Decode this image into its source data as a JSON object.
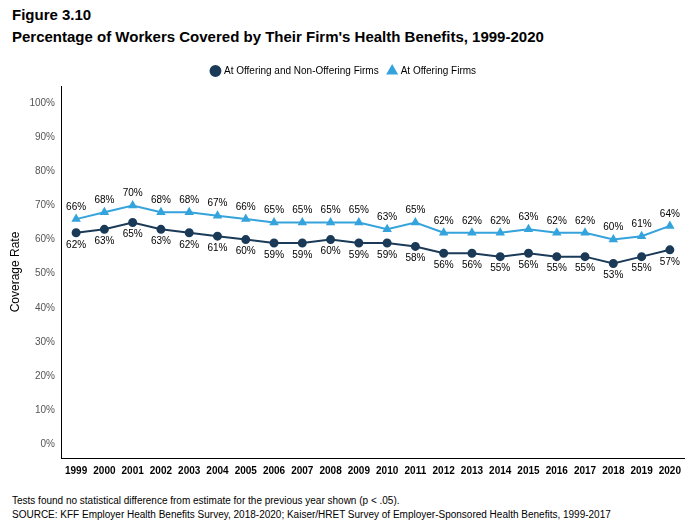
{
  "chart_data": {
    "type": "line",
    "title": "Figure 3.10",
    "subtitle": "Percentage of Workers Covered by Their Firm's Health Benefits, 1999-2020",
    "ylabel": "Coverage Rate",
    "annotations": [
      "Tests found no statistical difference from estimate for the previous year shown (p < .05).",
      "SOURCE: KFF Employer Health Benefits Survey, 2018-2020; Kaiser/HRET Survey of Employer-Sponsored Health Benefits, 1999-2017"
    ],
    "categories": [
      "1999",
      "2000",
      "2001",
      "2002",
      "2003",
      "2004",
      "2005",
      "2006",
      "2007",
      "2008",
      "2009",
      "2010",
      "2011",
      "2012",
      "2013",
      "2014",
      "2015",
      "2016",
      "2017",
      "2018",
      "2019",
      "2020"
    ],
    "series": [
      {
        "name": "At Offering and Non-Offering Firms",
        "color": "#1b3a57",
        "marker": "circle",
        "values": [
          62,
          63,
          65,
          63,
          62,
          61,
          60,
          59,
          59,
          60,
          59,
          59,
          58,
          56,
          56,
          55,
          56,
          55,
          55,
          53,
          55,
          57
        ],
        "value_labels": [
          "62%",
          "63%",
          "65%",
          "63%",
          "62%",
          "61%",
          "60%",
          "59%",
          "59%",
          "60%",
          "59%",
          "59%",
          "58%",
          "56%",
          "56%",
          "55%",
          "56%",
          "55%",
          "55%",
          "53%",
          "55%",
          "57%"
        ]
      },
      {
        "name": "At Offering Firms",
        "color": "#35a3dc",
        "marker": "triangle",
        "values": [
          66,
          68,
          70,
          68,
          68,
          67,
          66,
          65,
          65,
          65,
          65,
          63,
          65,
          62,
          62,
          62,
          63,
          62,
          62,
          60,
          61,
          64
        ],
        "value_labels": [
          "66%",
          "68%",
          "70%",
          "68%",
          "68%",
          "67%",
          "66%",
          "65%",
          "65%",
          "65%",
          "65%",
          "63%",
          "65%",
          "62%",
          "62%",
          "62%",
          "63%",
          "62%",
          "62%",
          "60%",
          "61%",
          "64%"
        ]
      }
    ],
    "ylim": [
      -4,
      105
    ],
    "yticks": [
      {
        "value": 0,
        "label": "0%"
      },
      {
        "value": 10,
        "label": "10%"
      },
      {
        "value": 20,
        "label": "20%"
      },
      {
        "value": 30,
        "label": "30%"
      },
      {
        "value": 40,
        "label": "40%"
      },
      {
        "value": 50,
        "label": "50%"
      },
      {
        "value": 60,
        "label": "60%"
      },
      {
        "value": 70,
        "label": "70%"
      },
      {
        "value": 80,
        "label": "80%"
      },
      {
        "value": 90,
        "label": "90%"
      },
      {
        "value": 100,
        "label": "100%"
      }
    ],
    "grid": false,
    "legend": "top",
    "data_labels": true
  }
}
